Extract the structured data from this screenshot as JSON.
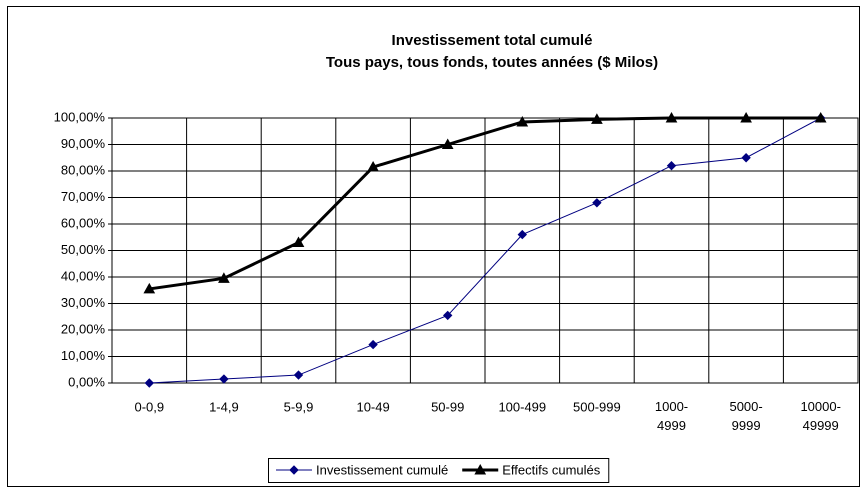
{
  "chart_data": {
    "type": "line",
    "title": "Investissement total cumulé",
    "subtitle": "Tous pays, tous fonds, toutes années ($ Milos)",
    "categories": [
      "0-0,9",
      "1-4,9",
      "5-9,9",
      "10-49",
      "50-99",
      "100-499",
      "500-999",
      "1000-4999",
      "5000-9999",
      "10000-49999"
    ],
    "series": [
      {
        "name": "Investissement cumulé",
        "color": "#000080",
        "marker": "diamond",
        "values": [
          0,
          1.5,
          3,
          14.5,
          25.5,
          56,
          68,
          82,
          85,
          100
        ]
      },
      {
        "name": "Effectifs cumulés",
        "color": "#000000",
        "marker": "triangle",
        "values": [
          35.5,
          39.5,
          53,
          81.5,
          90,
          98.5,
          99.5,
          100,
          100,
          100
        ]
      }
    ],
    "ylim": [
      0,
      100
    ],
    "yticks": [
      {
        "value": 0,
        "label": "0,00%"
      },
      {
        "value": 10,
        "label": "10,00%"
      },
      {
        "value": 20,
        "label": "20,00%"
      },
      {
        "value": 30,
        "label": "30,00%"
      },
      {
        "value": 40,
        "label": "40,00%"
      },
      {
        "value": 50,
        "label": "50,00%"
      },
      {
        "value": 60,
        "label": "60,00%"
      },
      {
        "value": 70,
        "label": "70,00%"
      },
      {
        "value": 80,
        "label": "80,00%"
      },
      {
        "value": 90,
        "label": "90,00%"
      },
      {
        "value": 100,
        "label": "100,00%"
      }
    ],
    "grid": true,
    "legend": "bottom"
  }
}
